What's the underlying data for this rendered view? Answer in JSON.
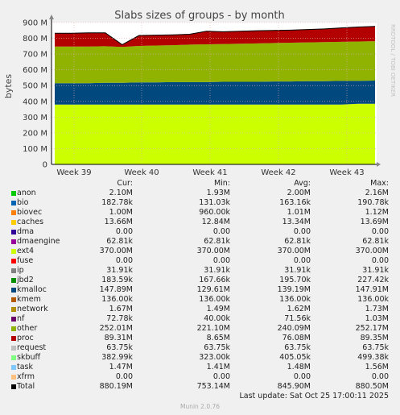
{
  "chart_data": {
    "type": "area",
    "title": "Slabs sizes of groups - by month",
    "ylabel": "bytes",
    "side_label": "RRDTOOL / TOBI OETIKER",
    "ylim": [
      0,
      900
    ],
    "yticks": [
      "0",
      "100 M",
      "200 M",
      "300 M",
      "400 M",
      "500 M",
      "600 M",
      "700 M",
      "800 M",
      "900 M"
    ],
    "xticks": [
      "Week 39",
      "Week 40",
      "Week 41",
      "Week 42",
      "Week 43"
    ],
    "series_top_values_M": {
      "ext4": [
        380,
        380,
        380,
        380,
        380,
        380,
        380,
        380,
        380,
        380,
        380,
        380,
        380,
        380,
        380,
        380,
        380,
        380,
        385,
        385
      ],
      "kmalloc": [
        515,
        515,
        515,
        518,
        518,
        520,
        520,
        522,
        522,
        522,
        524,
        524,
        524,
        526,
        526,
        528,
        528,
        530,
        530,
        532
      ],
      "other": [
        748,
        748,
        748,
        750,
        745,
        752,
        754,
        756,
        760,
        762,
        764,
        766,
        768,
        770,
        772,
        774,
        776,
        778,
        780,
        782
      ],
      "proc": [
        832,
        832,
        835,
        835,
        760,
        818,
        820,
        822,
        826,
        845,
        842,
        845,
        848,
        850,
        852,
        856,
        860,
        866,
        872,
        876
      ]
    }
  },
  "legend": {
    "headers": [
      "Cur:",
      "Min:",
      "Avg:",
      "Max:"
    ],
    "rows": [
      {
        "name": "anon",
        "color": "#00cc00",
        "cur": "2.10M",
        "min": "1.93M",
        "avg": "2.00M",
        "max": "2.16M"
      },
      {
        "name": "bio",
        "color": "#0066b3",
        "cur": "182.78k",
        "min": "131.03k",
        "avg": "163.16k",
        "max": "190.78k"
      },
      {
        "name": "biovec",
        "color": "#ff8000",
        "cur": "1.00M",
        "min": "960.00k",
        "avg": "1.01M",
        "max": "1.12M"
      },
      {
        "name": "caches",
        "color": "#ffcc00",
        "cur": "13.66M",
        "min": "12.84M",
        "avg": "13.34M",
        "max": "13.69M"
      },
      {
        "name": "dma",
        "color": "#330099",
        "cur": "0.00",
        "min": "0.00",
        "avg": "0.00",
        "max": "0.00"
      },
      {
        "name": "dmaengine",
        "color": "#990099",
        "cur": "62.81k",
        "min": "62.81k",
        "avg": "62.81k",
        "max": "62.81k"
      },
      {
        "name": "ext4",
        "color": "#ccff00",
        "cur": "370.00M",
        "min": "370.00M",
        "avg": "370.00M",
        "max": "370.00M"
      },
      {
        "name": "fuse",
        "color": "#ff0000",
        "cur": "0.00",
        "min": "0.00",
        "avg": "0.00",
        "max": "0.00"
      },
      {
        "name": "ip",
        "color": "#808080",
        "cur": "31.91k",
        "min": "31.91k",
        "avg": "31.91k",
        "max": "31.91k"
      },
      {
        "name": "jbd2",
        "color": "#008f00",
        "cur": "183.59k",
        "min": "167.66k",
        "avg": "195.70k",
        "max": "227.42k"
      },
      {
        "name": "kmalloc",
        "color": "#00487d",
        "cur": "147.89M",
        "min": "129.61M",
        "avg": "139.19M",
        "max": "147.91M"
      },
      {
        "name": "kmem",
        "color": "#b35a00",
        "cur": "136.00k",
        "min": "136.00k",
        "avg": "136.00k",
        "max": "136.00k"
      },
      {
        "name": "network",
        "color": "#b38f00",
        "cur": "1.67M",
        "min": "1.49M",
        "avg": "1.62M",
        "max": "1.73M"
      },
      {
        "name": "nf",
        "color": "#6b006b",
        "cur": "72.78k",
        "min": "40.00k",
        "avg": "71.56k",
        "max": "1.03M"
      },
      {
        "name": "other",
        "color": "#8fb300",
        "cur": "252.01M",
        "min": "221.10M",
        "avg": "240.09M",
        "max": "252.17M"
      },
      {
        "name": "proc",
        "color": "#b30000",
        "cur": "89.31M",
        "min": "8.65M",
        "avg": "76.08M",
        "max": "89.35M"
      },
      {
        "name": "request",
        "color": "#bebebe",
        "cur": "63.75k",
        "min": "63.75k",
        "avg": "63.75k",
        "max": "63.75k"
      },
      {
        "name": "skbuff",
        "color": "#80ff80",
        "cur": "382.99k",
        "min": "323.00k",
        "avg": "405.05k",
        "max": "499.38k"
      },
      {
        "name": "task",
        "color": "#80c9ff",
        "cur": "1.47M",
        "min": "1.41M",
        "avg": "1.48M",
        "max": "1.56M"
      },
      {
        "name": "xfrm",
        "color": "#ffc080",
        "cur": "0.00",
        "min": "0.00",
        "avg": "0.00",
        "max": "0.00"
      },
      {
        "name": "Total",
        "color": "#000000",
        "cur": "880.19M",
        "min": "753.14M",
        "avg": "845.90M",
        "max": "880.50M"
      }
    ]
  },
  "last_update": "Last update: Sat Oct 25 17:00:11 2025",
  "footer": "Munin 2.0.76"
}
